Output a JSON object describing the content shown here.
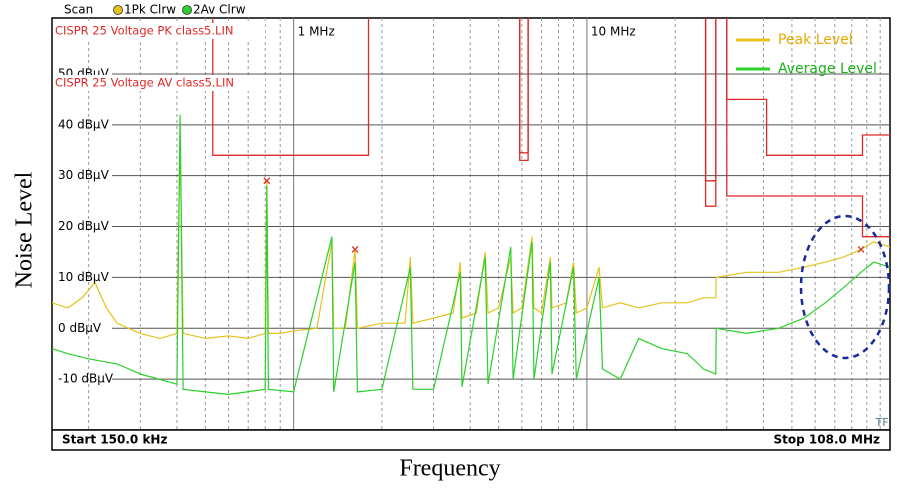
{
  "chart_data": {
    "type": "line",
    "x_label": "Frequency",
    "y_label": "Noise Level",
    "header": {
      "scan": "Scan",
      "trace1": "1Pk Clrw",
      "trace2": "2Av Clrw"
    },
    "start_label": "Start 150.0 kHz",
    "stop_label": "Stop 108.0 MHz",
    "tf_label": "TF",
    "xscale": "log",
    "xlim": [
      0.15,
      108
    ],
    "ylim": [
      -20,
      61
    ],
    "xticks": [
      {
        "value": 1,
        "label": "1 MHz"
      },
      {
        "value": 10,
        "label": "10 MHz"
      }
    ],
    "x_minor_grid": [
      0.2,
      0.3,
      0.4,
      0.5,
      0.6,
      0.7,
      0.8,
      0.9,
      2,
      3,
      4,
      5,
      6,
      7,
      8,
      9,
      20,
      30,
      40,
      50,
      60,
      70,
      80,
      90,
      100
    ],
    "yticks": [
      {
        "value": -10,
        "label": "-10 dBµV"
      },
      {
        "value": 0,
        "label": "0 dBµV"
      },
      {
        "value": 10,
        "label": "10 dBµV"
      },
      {
        "value": 20,
        "label": "20 dBµV"
      },
      {
        "value": 30,
        "label": "30 dBµV"
      },
      {
        "value": 40,
        "label": "40 dBµV"
      },
      {
        "value": 50,
        "label": "50 dBµV"
      }
    ],
    "grid": true,
    "legend": "upper right",
    "series": [
      {
        "name": "Peak Level",
        "color": "#e6c21c",
        "text_color": "#e8a800",
        "x": [
          0.15,
          0.17,
          0.19,
          0.21,
          0.23,
          0.25,
          0.3,
          0.35,
          0.4,
          0.41,
          0.42,
          0.5,
          0.6,
          0.7,
          0.8,
          0.81,
          0.82,
          0.9,
          1.0,
          1.2,
          1.35,
          1.37,
          1.5,
          1.62,
          1.65,
          2.0,
          2.4,
          2.5,
          2.55,
          3,
          3.5,
          3.7,
          3.75,
          4.2,
          4.5,
          4.6,
          5,
          5.5,
          5.6,
          6,
          6.5,
          6.6,
          7,
          7.5,
          7.6,
          8.5,
          9,
          9.2,
          10,
          11,
          11.3,
          13,
          15,
          18,
          22,
          25,
          27.5,
          27.6,
          35,
          45,
          55,
          65,
          75,
          86,
          95,
          108
        ],
        "values": [
          5,
          4,
          6,
          9,
          4,
          1,
          -1,
          -2,
          -1,
          38,
          -1,
          -2,
          -1.5,
          -2,
          -1,
          29,
          -1,
          -1,
          -0.5,
          0,
          17,
          0,
          0,
          15.5,
          0,
          1,
          1,
          14,
          1,
          2,
          3,
          13,
          2,
          3,
          15,
          3,
          4,
          14,
          3,
          4,
          18,
          4,
          3,
          14,
          4,
          5,
          13,
          3,
          4,
          12,
          4,
          5,
          4,
          5,
          5,
          6,
          6,
          10,
          11,
          11,
          12,
          13,
          14,
          15.5,
          17,
          16
        ]
      },
      {
        "name": "Average Level",
        "color": "#2ad12a",
        "text_color": "#18b418",
        "x": [
          0.15,
          0.17,
          0.2,
          0.25,
          0.3,
          0.4,
          0.41,
          0.42,
          0.5,
          0.6,
          0.8,
          0.81,
          0.82,
          1.0,
          1.35,
          1.37,
          1.62,
          1.65,
          2.0,
          2.5,
          2.55,
          3.0,
          3.7,
          3.75,
          4.5,
          4.6,
          5.5,
          5.6,
          6.5,
          6.6,
          7.5,
          7.6,
          9,
          9.2,
          11,
          11.3,
          13,
          15,
          18,
          22,
          25,
          27.5,
          27.6,
          35,
          45,
          55,
          65,
          75,
          86,
          95,
          108
        ],
        "values": [
          -4,
          -5,
          -6,
          -7,
          -9,
          -11,
          42,
          -12,
          -12.5,
          -13,
          -12,
          28,
          -12,
          -12.5,
          18,
          -12.5,
          13,
          -12.5,
          -12,
          12,
          -12,
          -12,
          11,
          -11.5,
          14,
          -11,
          16,
          -10,
          17,
          -10,
          13,
          -9,
          12,
          -10,
          10,
          -8,
          -10,
          -2,
          -4,
          -5,
          -8,
          -9,
          0,
          -1,
          0,
          2,
          5,
          8,
          11,
          13,
          12
        ]
      }
    ],
    "limit_lines": [
      {
        "name": "CISPR 25 Voltage PK class5.LIN",
        "color": "#e02828",
        "x": [
          0.15,
          0.53,
          0.53,
          1.8,
          1.8,
          5.9,
          5.9,
          6.3,
          6.3,
          25.4,
          25.4,
          27.5,
          27.5,
          30,
          30,
          41,
          41,
          87,
          87,
          108
        ],
        "values": [
          70,
          70,
          34,
          34,
          70,
          70,
          33,
          33,
          70,
          70,
          29,
          29,
          70,
          70,
          45,
          45,
          34,
          34,
          38,
          38
        ]
      },
      {
        "name": "CISPR 25 Voltage AV class5.LIN",
        "color": "#e02828",
        "x": [
          0.15,
          5.9,
          5.9,
          6.3,
          6.3,
          25.4,
          25.4,
          27.5,
          27.5,
          30,
          30,
          87,
          87,
          108
        ],
        "values": [
          66,
          66,
          34.5,
          34.5,
          66,
          66,
          24,
          24,
          66,
          66,
          26,
          26,
          18,
          18
        ]
      }
    ],
    "markers": [
      {
        "x": 0.81,
        "y": 29
      },
      {
        "x": 1.62,
        "y": 15.5
      },
      {
        "x": 86,
        "y": 15.5
      }
    ],
    "marker_color": "#e03020"
  }
}
